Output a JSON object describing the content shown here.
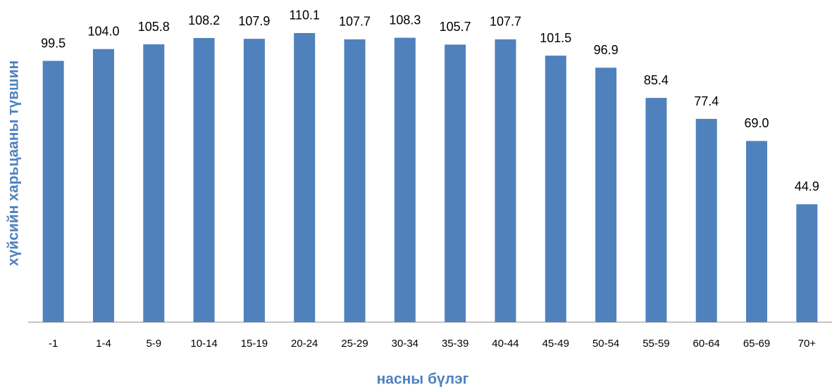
{
  "chart_data": {
    "type": "bar",
    "x_label": "насны бүлэг",
    "y_label": "хүйсийн харьцааны түвшин",
    "categories": [
      "-1",
      "1-4",
      "5-9",
      "10-14",
      "15-19",
      "20-24",
      "25-29",
      "30-34",
      "35-39",
      "40-44",
      "45-49",
      "50-54",
      "55-59",
      "60-64",
      "65-69",
      "70+"
    ],
    "values": [
      99.5,
      104.0,
      105.8,
      108.2,
      107.9,
      110.1,
      107.7,
      108.3,
      105.7,
      107.7,
      101.5,
      96.9,
      85.4,
      77.4,
      69.0,
      44.9
    ],
    "value_labels": [
      "99.5",
      "104.0",
      "105.8",
      "108.2",
      "107.9",
      "110.1",
      "107.7",
      "108.3",
      "105.7",
      "107.7",
      "101.5",
      "96.9",
      "85.4",
      "77.4",
      "69.0",
      "44.9"
    ],
    "color": "#4f81bd",
    "ylim": [
      0,
      120
    ]
  }
}
